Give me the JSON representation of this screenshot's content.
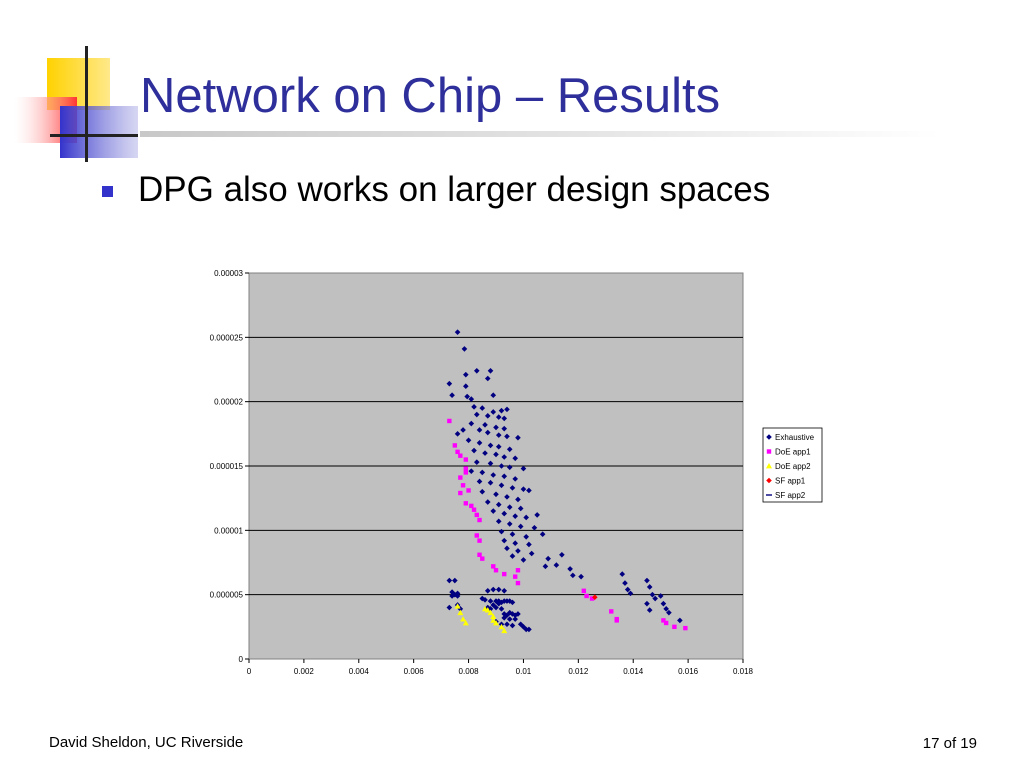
{
  "slide": {
    "title": "Network on Chip – Results",
    "bullets": [
      "DPG also works on larger design spaces"
    ],
    "footer_left": "David Sheldon, UC Riverside",
    "page_label": "17 of 19"
  },
  "colors": {
    "title": "#2e2f9b",
    "bullet": "#3333cc",
    "plot_area": "#c0c0c0",
    "logo_yellow": "#ffd200",
    "logo_red": "#ff3333",
    "logo_blue": "#3333cc"
  },
  "chart_data": {
    "type": "scatter",
    "title": "",
    "xlabel": "",
    "ylabel": "",
    "xlim": [
      0,
      0.018
    ],
    "ylim": [
      0,
      3e-05
    ],
    "xticks": [
      "0",
      "0.002",
      "0.004",
      "0.006",
      "0.008",
      "0.01",
      "0.012",
      "0.014",
      "0.016",
      "0.018"
    ],
    "yticks": [
      "0",
      "0.000005",
      "0.00001",
      "0.000015",
      "0.00002",
      "0.000025",
      "0.00003"
    ],
    "grid": "horizontal",
    "legend_position": "right",
    "series": [
      {
        "name": "Exhaustive",
        "marker": "diamond",
        "color": "#000080",
        "points": [
          [
            0.0076,
            2.54e-05
          ],
          [
            0.00785,
            2.41e-05
          ],
          [
            0.0083,
            2.24e-05
          ],
          [
            0.0088,
            2.24e-05
          ],
          [
            0.0079,
            2.21e-05
          ],
          [
            0.0087,
            2.18e-05
          ],
          [
            0.0073,
            2.14e-05
          ],
          [
            0.0079,
            2.12e-05
          ],
          [
            0.0074,
            2.05e-05
          ],
          [
            0.00795,
            2.04e-05
          ],
          [
            0.0081,
            2.02e-05
          ],
          [
            0.0089,
            2.05e-05
          ],
          [
            0.0082,
            1.96e-05
          ],
          [
            0.0085,
            1.95e-05
          ],
          [
            0.0089,
            1.92e-05
          ],
          [
            0.0092,
            1.93e-05
          ],
          [
            0.0094,
            1.94e-05
          ],
          [
            0.0083,
            1.9e-05
          ],
          [
            0.0087,
            1.89e-05
          ],
          [
            0.0091,
            1.88e-05
          ],
          [
            0.0093,
            1.87e-05
          ],
          [
            0.0081,
            1.83e-05
          ],
          [
            0.0086,
            1.82e-05
          ],
          [
            0.009,
            1.8e-05
          ],
          [
            0.0093,
            1.79e-05
          ],
          [
            0.0078,
            1.78e-05
          ],
          [
            0.0084,
            1.78e-05
          ],
          [
            0.0087,
            1.76e-05
          ],
          [
            0.0091,
            1.74e-05
          ],
          [
            0.0094,
            1.73e-05
          ],
          [
            0.0098,
            1.72e-05
          ],
          [
            0.0076,
            1.75e-05
          ],
          [
            0.008,
            1.7e-05
          ],
          [
            0.0084,
            1.68e-05
          ],
          [
            0.0088,
            1.66e-05
          ],
          [
            0.0091,
            1.65e-05
          ],
          [
            0.0095,
            1.63e-05
          ],
          [
            0.0082,
            1.62e-05
          ],
          [
            0.0086,
            1.6e-05
          ],
          [
            0.009,
            1.59e-05
          ],
          [
            0.0093,
            1.57e-05
          ],
          [
            0.0097,
            1.56e-05
          ],
          [
            0.0083,
            1.53e-05
          ],
          [
            0.0088,
            1.52e-05
          ],
          [
            0.0092,
            1.5e-05
          ],
          [
            0.0095,
            1.49e-05
          ],
          [
            0.01,
            1.48e-05
          ],
          [
            0.0081,
            1.46e-05
          ],
          [
            0.0085,
            1.45e-05
          ],
          [
            0.0089,
            1.43e-05
          ],
          [
            0.0093,
            1.42e-05
          ],
          [
            0.0097,
            1.4e-05
          ],
          [
            0.0084,
            1.38e-05
          ],
          [
            0.0088,
            1.37e-05
          ],
          [
            0.0092,
            1.35e-05
          ],
          [
            0.0096,
            1.33e-05
          ],
          [
            0.01,
            1.32e-05
          ],
          [
            0.0102,
            1.31e-05
          ],
          [
            0.0085,
            1.3e-05
          ],
          [
            0.009,
            1.28e-05
          ],
          [
            0.0094,
            1.26e-05
          ],
          [
            0.0098,
            1.24e-05
          ],
          [
            0.0087,
            1.22e-05
          ],
          [
            0.0091,
            1.2e-05
          ],
          [
            0.0095,
            1.18e-05
          ],
          [
            0.0099,
            1.17e-05
          ],
          [
            0.0089,
            1.15e-05
          ],
          [
            0.0093,
            1.13e-05
          ],
          [
            0.0097,
            1.11e-05
          ],
          [
            0.0101,
            1.1e-05
          ],
          [
            0.0105,
            1.12e-05
          ],
          [
            0.0091,
            1.07e-05
          ],
          [
            0.0095,
            1.05e-05
          ],
          [
            0.0099,
            1.03e-05
          ],
          [
            0.0104,
            1.02e-05
          ],
          [
            0.0092,
            9.9e-06
          ],
          [
            0.0096,
            9.7e-06
          ],
          [
            0.0101,
            9.5e-06
          ],
          [
            0.0107,
            9.7e-06
          ],
          [
            0.0093,
            9.2e-06
          ],
          [
            0.0097,
            9e-06
          ],
          [
            0.0102,
            8.9e-06
          ],
          [
            0.0094,
            8.6e-06
          ],
          [
            0.0098,
            8.4e-06
          ],
          [
            0.0103,
            8.2e-06
          ],
          [
            0.0109,
            7.8e-06
          ],
          [
            0.0114,
            8.1e-06
          ],
          [
            0.0096,
            8e-06
          ],
          [
            0.01,
            7.7e-06
          ],
          [
            0.0108,
            7.2e-06
          ],
          [
            0.0112,
            7.3e-06
          ],
          [
            0.0117,
            7e-06
          ],
          [
            0.0118,
            6.5e-06
          ],
          [
            0.0121,
            6.4e-06
          ],
          [
            0.0136,
            6.6e-06
          ],
          [
            0.0137,
            5.9e-06
          ],
          [
            0.0138,
            5.4e-06
          ],
          [
            0.0139,
            5.1e-06
          ],
          [
            0.0145,
            6.1e-06
          ],
          [
            0.0146,
            5.6e-06
          ],
          [
            0.0147,
            5e-06
          ],
          [
            0.0148,
            4.7e-06
          ],
          [
            0.0145,
            4.3e-06
          ],
          [
            0.0146,
            3.8e-06
          ],
          [
            0.015,
            4.9e-06
          ],
          [
            0.0151,
            4.3e-06
          ],
          [
            0.0152,
            3.9e-06
          ],
          [
            0.0153,
            3.6e-06
          ],
          [
            0.0157,
            3e-06
          ],
          [
            0.0073,
            6.1e-06
          ],
          [
            0.0075,
            6.1e-06
          ],
          [
            0.0074,
            5.2e-06
          ],
          [
            0.0075,
            5e-06
          ],
          [
            0.0076,
            4.9e-06
          ],
          [
            0.0074,
            4.9e-06
          ],
          [
            0.0076,
            5.1e-06
          ],
          [
            0.0073,
            4e-06
          ],
          [
            0.0076,
            4.2e-06
          ],
          [
            0.0077,
            3.9e-06
          ],
          [
            0.0085,
            4.7e-06
          ],
          [
            0.0087,
            5.3e-06
          ],
          [
            0.0089,
            5.4e-06
          ],
          [
            0.0091,
            5.4e-06
          ],
          [
            0.0093,
            5.3e-06
          ],
          [
            0.0086,
            4.6e-06
          ],
          [
            0.0088,
            4.5e-06
          ],
          [
            0.009,
            4.5e-06
          ],
          [
            0.0091,
            4.5e-06
          ],
          [
            0.0093,
            4.5e-06
          ],
          [
            0.0094,
            4.5e-06
          ],
          [
            0.0089,
            4.2e-06
          ],
          [
            0.0091,
            4.3e-06
          ],
          [
            0.0092,
            4.4e-06
          ],
          [
            0.0095,
            4.5e-06
          ],
          [
            0.0096,
            4.4e-06
          ],
          [
            0.0087,
            4e-06
          ],
          [
            0.0088,
            3.9e-06
          ],
          [
            0.009,
            4e-06
          ],
          [
            0.0092,
            3.9e-06
          ],
          [
            0.0093,
            3.5e-06
          ],
          [
            0.0094,
            3.4e-06
          ],
          [
            0.0095,
            3.6e-06
          ],
          [
            0.0096,
            3.5e-06
          ],
          [
            0.0097,
            3.4e-06
          ],
          [
            0.0098,
            3.5e-06
          ],
          [
            0.0093,
            3.2e-06
          ],
          [
            0.0095,
            3.1e-06
          ],
          [
            0.0097,
            3.1e-06
          ],
          [
            0.0099,
            2.7e-06
          ],
          [
            0.01,
            2.5e-06
          ],
          [
            0.0101,
            2.3e-06
          ],
          [
            0.0102,
            2.3e-06
          ],
          [
            0.009,
            2.9e-06
          ],
          [
            0.0092,
            2.7e-06
          ],
          [
            0.0094,
            2.7e-06
          ],
          [
            0.0096,
            2.6e-06
          ]
        ]
      },
      {
        "name": "DoE app1",
        "marker": "square",
        "color": "#ff00ff",
        "points": [
          [
            0.0073,
            1.85e-05
          ],
          [
            0.0075,
            1.66e-05
          ],
          [
            0.0076,
            1.61e-05
          ],
          [
            0.0077,
            1.58e-05
          ],
          [
            0.0079,
            1.55e-05
          ],
          [
            0.0079,
            1.48e-05
          ],
          [
            0.0079,
            1.45e-05
          ],
          [
            0.0077,
            1.41e-05
          ],
          [
            0.0078,
            1.35e-05
          ],
          [
            0.008,
            1.31e-05
          ],
          [
            0.0077,
            1.29e-05
          ],
          [
            0.0079,
            1.21e-05
          ],
          [
            0.0081,
            1.19e-05
          ],
          [
            0.0082,
            1.16e-05
          ],
          [
            0.0083,
            1.12e-05
          ],
          [
            0.0084,
            1.08e-05
          ],
          [
            0.0083,
            9.6e-06
          ],
          [
            0.0084,
            9.2e-06
          ],
          [
            0.0084,
            8.1e-06
          ],
          [
            0.0085,
            7.8e-06
          ],
          [
            0.0089,
            7.2e-06
          ],
          [
            0.009,
            6.9e-06
          ],
          [
            0.0093,
            6.6e-06
          ],
          [
            0.0098,
            6.9e-06
          ],
          [
            0.0097,
            6.4e-06
          ],
          [
            0.0098,
            5.9e-06
          ],
          [
            0.0122,
            5.3e-06
          ],
          [
            0.0123,
            4.9e-06
          ],
          [
            0.0125,
            4.7e-06
          ],
          [
            0.0132,
            3.7e-06
          ],
          [
            0.0134,
            3.1e-06
          ],
          [
            0.0134,
            3e-06
          ],
          [
            0.0151,
            3e-06
          ],
          [
            0.0152,
            2.8e-06
          ],
          [
            0.0155,
            2.5e-06
          ],
          [
            0.0159,
            2.4e-06
          ]
        ]
      },
      {
        "name": "DoE app2",
        "marker": "triangle",
        "color": "#ffff00",
        "points": [
          [
            0.0076,
            4.1e-06
          ],
          [
            0.0077,
            3.6e-06
          ],
          [
            0.0078,
            3.1e-06
          ],
          [
            0.0079,
            2.8e-06
          ],
          [
            0.0086,
            3.9e-06
          ],
          [
            0.0087,
            3.8e-06
          ],
          [
            0.0088,
            3.6e-06
          ],
          [
            0.0089,
            3.3e-06
          ],
          [
            0.0089,
            3e-06
          ],
          [
            0.009,
            2.8e-06
          ],
          [
            0.0092,
            2.5e-06
          ],
          [
            0.0093,
            2.2e-06
          ]
        ]
      },
      {
        "name": "SF app1",
        "marker": "diamond",
        "color": "#ff0000",
        "points": [
          [
            0.0126,
            4.8e-06
          ]
        ]
      },
      {
        "name": "SF app2",
        "marker": "dash",
        "color": "#000080",
        "points": []
      }
    ]
  }
}
